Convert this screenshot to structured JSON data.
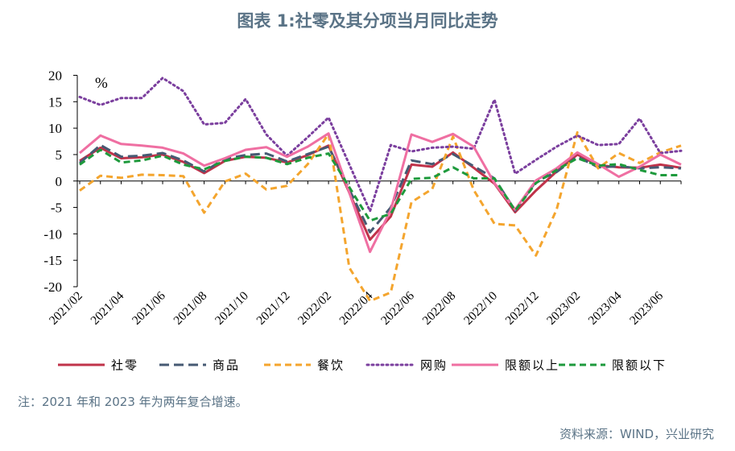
{
  "title": "图表 1:社零及其分项当月同比走势",
  "note": "注：2021 年和 2023 年为两年复合增速。",
  "source": "资料来源：WIND，兴业研究",
  "chart_data": {
    "type": "line",
    "unit": "%",
    "ylim": [
      -20,
      20
    ],
    "yticks": [
      20,
      15,
      10,
      5,
      0,
      -5,
      -10,
      -15,
      -20
    ],
    "x": [
      "2021/02",
      "2021/03",
      "2021/04",
      "2021/05",
      "2021/06",
      "2021/07",
      "2021/08",
      "2021/09",
      "2021/10",
      "2021/11",
      "2021/12",
      "2022/01",
      "2022/02",
      "2022/03",
      "2022/04",
      "2022/05",
      "2022/06",
      "2022/07",
      "2022/08",
      "2022/09",
      "2022/10",
      "2022/11",
      "2022/12",
      "2023/01",
      "2023/02",
      "2023/03",
      "2023/04",
      "2023/05",
      "2023/06",
      "2023/07"
    ],
    "xtick_labels": [
      "2021/02",
      "2021/04",
      "2021/06",
      "2021/08",
      "2021/10",
      "2021/12",
      "2022/02",
      "2022/04",
      "2022/06",
      "2022/08",
      "2022/10",
      "2022/12",
      "2023/02",
      "2023/04",
      "2023/06"
    ],
    "legend_position": "bottom",
    "series": [
      {
        "name": "社零",
        "color": "#c0334a",
        "dash": "solid",
        "values": [
          3.8,
          6.3,
          4.3,
          4.5,
          5.0,
          3.6,
          1.5,
          3.8,
          4.6,
          4.4,
          3.5,
          4.9,
          6.7,
          null,
          -11.1,
          -6.7,
          3.1,
          2.7,
          5.4,
          2.5,
          -0.5,
          -5.9,
          -1.8,
          1.8,
          5.0,
          3.0,
          2.6,
          2.5,
          3.1,
          2.5
        ]
      },
      {
        "name": "商品",
        "color": "#465a73",
        "dash": "longdash",
        "values": [
          3.4,
          6.8,
          4.6,
          4.8,
          5.3,
          3.9,
          1.8,
          4.2,
          4.9,
          5.2,
          3.7,
          5.1,
          6.5,
          null,
          -9.7,
          -5.0,
          3.9,
          3.2,
          5.1,
          2.8,
          0.5,
          -5.6,
          -0.1,
          1.7,
          4.6,
          2.6,
          2.8,
          2.4,
          2.6,
          2.4
        ]
      },
      {
        "name": "餐饮",
        "color": "#f4a52e",
        "dash": "dash",
        "values": [
          -1.8,
          1.0,
          0.6,
          1.2,
          1.1,
          0.9,
          -6.0,
          -0.1,
          1.4,
          -1.6,
          -0.9,
          3.2,
          8.9,
          -16.4,
          -22.7,
          -21.1,
          -4.0,
          -1.5,
          8.4,
          -1.7,
          -8.1,
          -8.4,
          -14.1,
          -5.4,
          9.2,
          2.4,
          5.3,
          3.4,
          5.4,
          6.7
        ]
      },
      {
        "name": "网购",
        "color": "#7b3f9e",
        "dash": "dot",
        "values": [
          15.9,
          14.4,
          15.7,
          15.7,
          19.5,
          17.0,
          10.7,
          11.0,
          15.5,
          8.8,
          4.8,
          8.3,
          12.0,
          null,
          -5.7,
          6.8,
          5.6,
          6.3,
          6.5,
          6.1,
          15.4,
          1.4,
          4.0,
          6.5,
          8.6,
          6.8,
          7.0,
          11.8,
          5.3,
          5.7
        ]
      },
      {
        "name": "限额以上",
        "color": "#ef6fa2",
        "dash": "solid",
        "values": [
          5.3,
          8.6,
          7.0,
          6.7,
          6.3,
          5.2,
          2.9,
          4.3,
          5.9,
          6.4,
          4.6,
          6.5,
          9.0,
          null,
          -13.4,
          -5.5,
          8.8,
          7.4,
          8.9,
          6.5,
          -0.4,
          -5.4,
          0.1,
          2.4,
          5.4,
          3.2,
          0.8,
          2.7,
          5.0,
          3.1
        ]
      },
      {
        "name": "限额以下",
        "color": "#1e9a3c",
        "dash": "dash",
        "values": [
          3.1,
          5.9,
          3.5,
          3.9,
          4.8,
          3.1,
          2.2,
          3.8,
          4.6,
          4.4,
          3.2,
          4.4,
          5.2,
          null,
          -7.5,
          -6.2,
          0.4,
          0.6,
          2.6,
          0.5,
          0.5,
          -5.6,
          -0.4,
          2.1,
          4.3,
          2.9,
          3.2,
          2.1,
          1.1,
          1.1
        ]
      }
    ]
  }
}
